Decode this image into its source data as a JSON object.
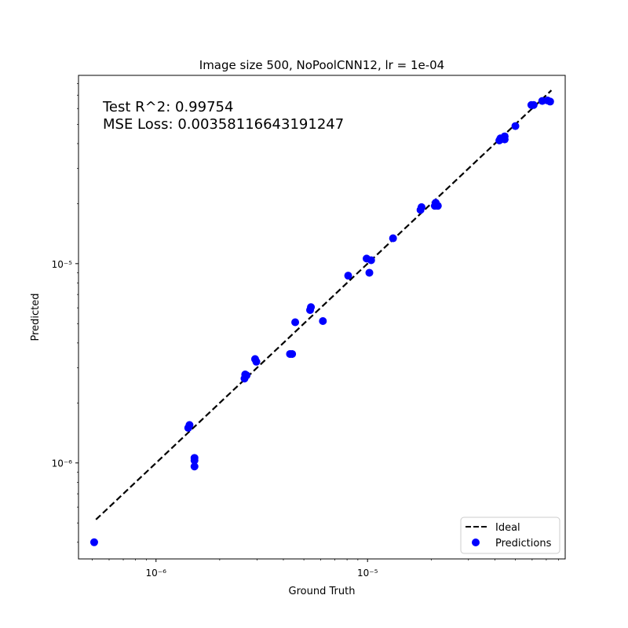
{
  "chart_data": {
    "type": "scatter",
    "title": "Image size 500, NoPoolCNN12, lr = 1e-04",
    "xlabel": "Ground Truth",
    "ylabel": "Predicted",
    "x_scale": "log",
    "y_scale": "log",
    "xlim": [
      4.3e-07,
      8.6e-05
    ],
    "ylim": [
      3.3e-07,
      8.8e-05
    ],
    "x_ticks": [
      {
        "value": 1e-06,
        "label": "10⁻⁶"
      },
      {
        "value": 1e-05,
        "label": "10⁻⁵"
      }
    ],
    "y_ticks": [
      {
        "value": 1e-06,
        "label": "10⁻⁶"
      },
      {
        "value": 1e-05,
        "label": "10⁻⁵"
      }
    ],
    "annotations": [
      "Test R^2: 0.99754",
      "MSE Loss: 0.00358116643191247"
    ],
    "legend_position": "lower-right",
    "ideal_line": {
      "name": "Ideal",
      "x": [
        5.2e-07,
        7.4e-05
      ],
      "y": [
        5.2e-07,
        7.4e-05
      ],
      "color": "#000000",
      "style": "dashed"
    },
    "series": [
      {
        "name": "Predictions",
        "color": "#0000ff",
        "points": [
          [
            5.1e-07,
            4e-07
          ],
          [
            1.42e-06,
            1.5e-06
          ],
          [
            1.44e-06,
            1.55e-06
          ],
          [
            1.52e-06,
            1.06e-06
          ],
          [
            1.52e-06,
            1.03e-06
          ],
          [
            1.52e-06,
            9.6e-07
          ],
          [
            2.62e-06,
            2.65e-06
          ],
          [
            2.64e-06,
            2.78e-06
          ],
          [
            2.68e-06,
            2.75e-06
          ],
          [
            2.94e-06,
            3.32e-06
          ],
          [
            2.98e-06,
            3.22e-06
          ],
          [
            4.3e-06,
            3.52e-06
          ],
          [
            4.4e-06,
            3.52e-06
          ],
          [
            4.55e-06,
            5.08e-06
          ],
          [
            5.35e-06,
            5.85e-06
          ],
          [
            5.4e-06,
            6.05e-06
          ],
          [
            6.15e-06,
            5.15e-06
          ],
          [
            8.1e-06,
            8.7e-06
          ],
          [
            9.9e-06,
            1.06e-05
          ],
          [
            1.02e-05,
            9e-06
          ],
          [
            1.04e-05,
            1.04e-05
          ],
          [
            1.32e-05,
            1.34e-05
          ],
          [
            1.78e-05,
            1.86e-05
          ],
          [
            1.8e-05,
            1.92e-05
          ],
          [
            2.08e-05,
            1.95e-05
          ],
          [
            2.1e-05,
            2.02e-05
          ],
          [
            2.15e-05,
            1.95e-05
          ],
          [
            4.2e-05,
            4.15e-05
          ],
          [
            4.25e-05,
            4.25e-05
          ],
          [
            4.45e-05,
            4.2e-05
          ],
          [
            4.45e-05,
            4.35e-05
          ],
          [
            5e-05,
            4.9e-05
          ],
          [
            5.95e-05,
            6.25e-05
          ],
          [
            6.1e-05,
            6.25e-05
          ],
          [
            6.7e-05,
            6.55e-05
          ],
          [
            7.1e-05,
            6.58e-05
          ],
          [
            7.3e-05,
            6.5e-05
          ]
        ]
      }
    ]
  }
}
